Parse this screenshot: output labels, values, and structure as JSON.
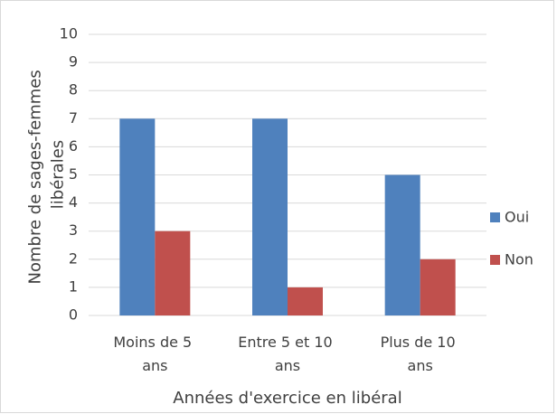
{
  "chart_data": {
    "type": "bar",
    "categories": [
      "Moins de 5 ans",
      "Entre 5 et 10 ans",
      "Plus de 10 ans"
    ],
    "series": [
      {
        "name": "Oui",
        "color": "#4f81bd",
        "values": [
          7,
          7,
          5
        ]
      },
      {
        "name": "Non",
        "color": "#c0504d",
        "values": [
          3,
          1,
          2
        ]
      }
    ],
    "ylabel": "Nombre de sages-femmes libérales",
    "xlabel": "Années d'exercice en libéral",
    "ylim": [
      0,
      10
    ],
    "yticks": [
      0,
      1,
      2,
      3,
      4,
      5,
      6,
      7,
      8,
      9,
      10
    ],
    "grid": true,
    "legend": "right"
  }
}
